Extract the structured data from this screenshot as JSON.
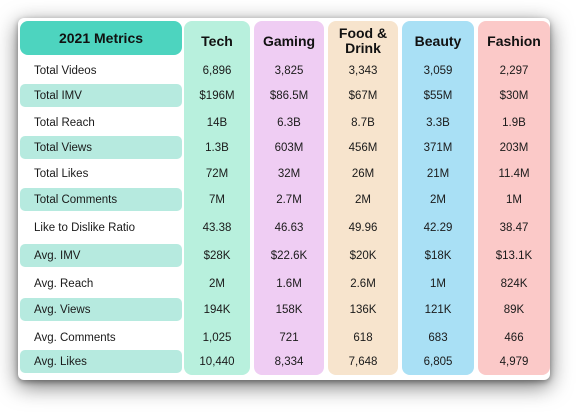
{
  "table": {
    "header_label": "2021 Metrics",
    "columns": [
      {
        "label": "Tech",
        "color": "#b8f0dd"
      },
      {
        "label": "Gaming",
        "color": "#efcdf3"
      },
      {
        "label": "Food & Drink",
        "color": "#f7e4cd"
      },
      {
        "label": "Beauty",
        "color": "#a9e0f5"
      },
      {
        "label": "Fashion",
        "color": "#fbc9c8"
      }
    ],
    "rows": [
      {
        "label": "Total Videos",
        "values": [
          "6,896",
          "3,825",
          "3,343",
          "3,059",
          "2,297"
        ]
      },
      {
        "label": "Total IMV",
        "values": [
          "$196M",
          "$86.5M",
          "$67M",
          "$55M",
          "$30M"
        ]
      },
      {
        "label": "Total Reach",
        "values": [
          "14B",
          "6.3B",
          "8.7B",
          "3.3B",
          "1.9B"
        ]
      },
      {
        "label": "Total Views",
        "values": [
          "1.3B",
          "603M",
          "456M",
          "371M",
          "203M"
        ]
      },
      {
        "label": "Total Likes",
        "values": [
          "72M",
          "32M",
          "26M",
          "21M",
          "11.4M"
        ]
      },
      {
        "label": "Total Comments",
        "values": [
          "7M",
          "2.7M",
          "2M",
          "2M",
          "1M"
        ]
      },
      {
        "label": "Like to Dislike Ratio",
        "values": [
          "43.38",
          "46.63",
          "49.96",
          "42.29",
          "38.47"
        ]
      },
      {
        "label": "Avg. IMV",
        "values": [
          "$28K",
          "$22.6K",
          "$20K",
          "$18K",
          "$13.1K"
        ]
      },
      {
        "label": "Avg. Reach",
        "values": [
          "2M",
          "1.6M",
          "2.6M",
          "1M",
          "824K"
        ]
      },
      {
        "label": "Avg. Views",
        "values": [
          "194K",
          "158K",
          "136K",
          "121K",
          "89K"
        ]
      },
      {
        "label": "Avg. Comments",
        "values": [
          "1,025",
          "721",
          "618",
          "683",
          "466"
        ]
      },
      {
        "label": "Avg. Likes",
        "values": [
          "10,440",
          "8,334",
          "7,648",
          "6,805",
          "4,979"
        ]
      }
    ]
  }
}
